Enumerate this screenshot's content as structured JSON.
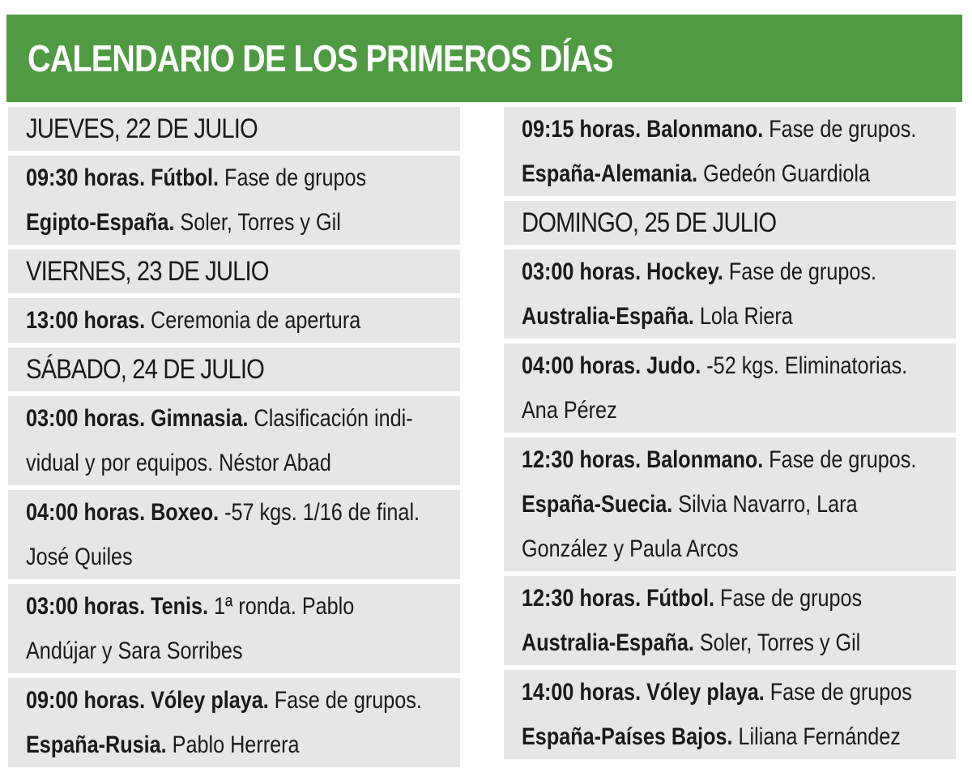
{
  "title": "CALENDARIO DE LOS PRIMEROS DÍAS",
  "left_column": [
    {
      "day": "JUEVES, 22 DE JULIO",
      "events": [
        {
          "lines": [
            {
              "bold": "09:30 horas. Fútbol.",
              "text": " Fase de grupos"
            },
            {
              "bold": "Egipto-España.",
              "text": " Soler, Torres y Gil"
            }
          ]
        }
      ]
    },
    {
      "day": "VIERNES, 23 DE JULIO",
      "events": [
        {
          "lines": [
            {
              "bold": "13:00 horas.",
              "text": " Ceremonia de apertura"
            }
          ]
        }
      ]
    },
    {
      "day": "SÁBADO, 24 DE JULIO",
      "events": [
        {
          "lines": [
            {
              "bold": "03:00 horas. Gimnasia.",
              "text": " Clasificación indi-"
            },
            {
              "bold": "",
              "text": "vidual y por equipos. Néstor Abad"
            }
          ]
        },
        {
          "lines": [
            {
              "bold": "04:00 horas. Boxeo.",
              "text": " -57 kgs. 1/16 de final."
            },
            {
              "bold": "",
              "text": "José Quiles"
            }
          ]
        },
        {
          "lines": [
            {
              "bold": "03:00 horas. Tenis.",
              "text": " 1ª ronda. Pablo"
            },
            {
              "bold": "",
              "text": "Andújar y Sara Sorribes"
            }
          ]
        },
        {
          "lines": [
            {
              "bold": "09:00 horas. Vóley playa.",
              "text": " Fase de grupos."
            },
            {
              "bold": "España-Rusia.",
              "text": " Pablo Herrera"
            }
          ]
        }
      ]
    }
  ],
  "right_column": [
    {
      "day": "",
      "events": [
        {
          "lines": [
            {
              "bold": "09:15 horas. Balonmano.",
              "text": " Fase de grupos."
            },
            {
              "bold": "España-Alemania.",
              "text": " Gedeón Guardiola"
            }
          ]
        }
      ]
    },
    {
      "day": "DOMINGO, 25 DE JULIO",
      "events": [
        {
          "lines": [
            {
              "bold": "03:00 horas. Hockey.",
              "text": " Fase de grupos."
            },
            {
              "bold": "Australia-España.",
              "text": " Lola Riera"
            }
          ]
        },
        {
          "lines": [
            {
              "bold": "04:00 horas. Judo.",
              "text": " -52 kgs. Eliminatorias."
            },
            {
              "bold": "",
              "text": "Ana Pérez"
            }
          ]
        },
        {
          "lines": [
            {
              "bold": "12:30 horas. Balonmano.",
              "text": " Fase de grupos."
            },
            {
              "bold": "España-Suecia.",
              "text": " Silvia Navarro, Lara"
            },
            {
              "bold": "",
              "text": "González y Paula Arcos"
            }
          ]
        },
        {
          "lines": [
            {
              "bold": "12:30 horas. Fútbol.",
              "text": " Fase de grupos"
            },
            {
              "bold": "Australia-España.",
              "text": " Soler, Torres y Gil"
            }
          ]
        },
        {
          "lines": [
            {
              "bold": "14:00 horas. Vóley playa.",
              "text": " Fase de grupos"
            },
            {
              "bold": "España-Países Bajos.",
              "text": " Liliana Fernández"
            }
          ]
        }
      ]
    }
  ],
  "colors": {
    "header_green": "#4f9a42",
    "block_gray": "#e6e6e6"
  }
}
